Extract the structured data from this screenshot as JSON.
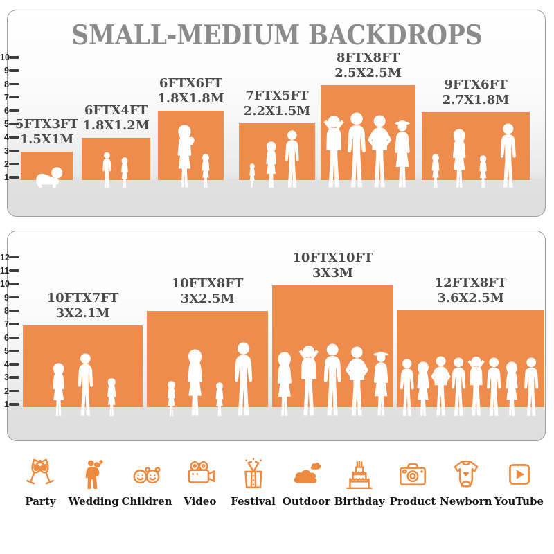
{
  "title": "SMALL-MEDIUM BACKDROPS",
  "colors": {
    "backdrop_orange": "#EE8C4D",
    "icon_orange": "#ED8A3F",
    "label_text": "#4B4B4B",
    "title_gray": "#8B8B8B",
    "floor_gray": "#E0E0E0",
    "silhouette_white": "#FFFFFF"
  },
  "panel_small": {
    "ruler_labels": [
      "10",
      "9",
      "8",
      "7",
      "6",
      "5",
      "4",
      "3",
      "2",
      "1"
    ],
    "backdrops": [
      {
        "size_ft": "5FTX3FT",
        "size_m": "1.5X1M",
        "figures": [
          "crawling baby"
        ]
      },
      {
        "size_ft": "6FTX4FT",
        "size_m": "1.8X1.2M",
        "figures": [
          "boy",
          "girl"
        ]
      },
      {
        "size_ft": "6FTX6FT",
        "size_m": "1.8X1.8M",
        "figures": [
          "woman holding baby",
          "girl"
        ]
      },
      {
        "size_ft": "7FTX5FT",
        "size_m": "2.2X1.5M",
        "figures": [
          "toddler",
          "woman",
          "man"
        ]
      },
      {
        "size_ft": "8FTX8FT",
        "size_m": "2.5X2.5M",
        "figures": [
          "man arms up",
          "man",
          "man hands on hips",
          "woman with hat"
        ]
      },
      {
        "size_ft": "9FTX6FT",
        "size_m": "2.7X1.8M",
        "figures": [
          "girl",
          "woman",
          "girl",
          "man"
        ]
      }
    ]
  },
  "panel_medium": {
    "ruler_labels": [
      "12",
      "11",
      "10",
      "9",
      "8",
      "7",
      "6",
      "5",
      "4",
      "3",
      "2",
      "1"
    ],
    "backdrops": [
      {
        "size_ft": "10FTX7FT",
        "size_m": "3X2.1M",
        "figures": [
          "woman",
          "man",
          "girl"
        ]
      },
      {
        "size_ft": "10FTX8FT",
        "size_m": "3X2.5M",
        "figures": [
          "girl",
          "woman",
          "girl",
          "man"
        ]
      },
      {
        "size_ft": "10FTX10FT",
        "size_m": "3X3M",
        "figures": [
          "woman",
          "man arms up",
          "man",
          "man hands on hips",
          "woman with hat"
        ]
      },
      {
        "size_ft": "12FTX8FT",
        "size_m": "3.6X2.5M",
        "figures": [
          "man",
          "woman",
          "man",
          "man",
          "man",
          "man",
          "woman",
          "man"
        ]
      }
    ]
  },
  "categories": [
    {
      "label": "Party",
      "icon": "party-icon"
    },
    {
      "label": "Wedding",
      "icon": "wedding-icon"
    },
    {
      "label": "Children",
      "icon": "children-icon"
    },
    {
      "label": "Video",
      "icon": "video-icon"
    },
    {
      "label": "Festival",
      "icon": "festival-icon"
    },
    {
      "label": "Outdoor",
      "icon": "outdoor-icon"
    },
    {
      "label": "Birthday",
      "icon": "birthday-icon"
    },
    {
      "label": "Product",
      "icon": "product-icon"
    },
    {
      "label": "Newborn",
      "icon": "newborn-icon"
    },
    {
      "label": "YouTube",
      "icon": "youtube-icon"
    }
  ]
}
